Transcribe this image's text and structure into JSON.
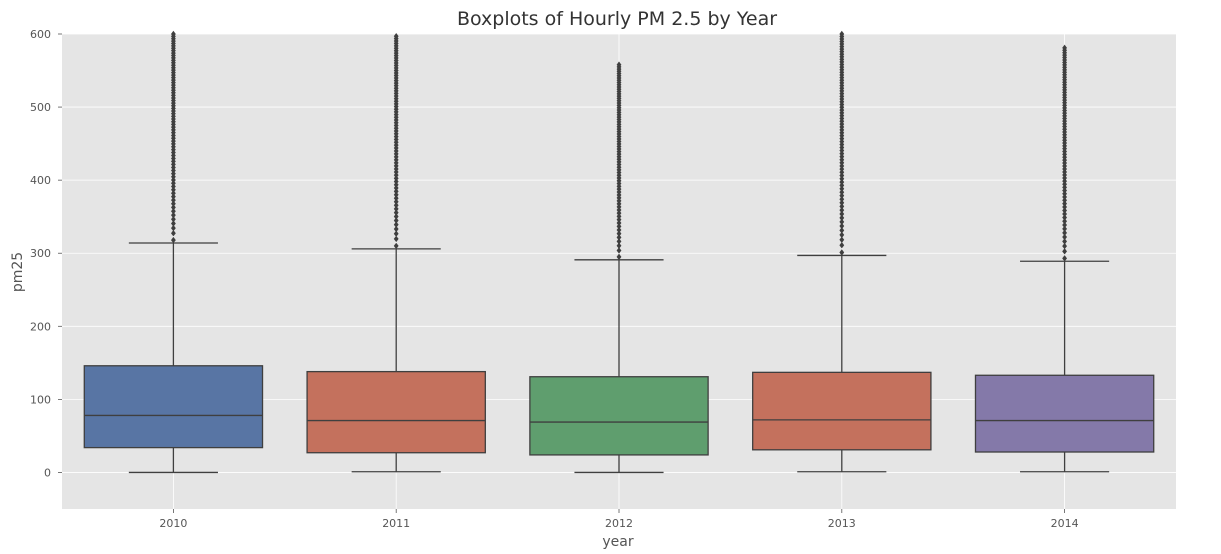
{
  "chart_data": {
    "type": "box",
    "title": "Boxplots of Hourly PM 2.5 by Year",
    "xlabel": "year",
    "ylabel": "pm25",
    "ylim": [
      -50,
      600
    ],
    "yticks": [
      0,
      100,
      200,
      300,
      400,
      500,
      600
    ],
    "grid": true,
    "categories": [
      "2010",
      "2011",
      "2012",
      "2013",
      "2014"
    ],
    "colors": [
      "#5875a4",
      "#c4715d",
      "#5f9e6e",
      "#c4715d",
      "#8479a9"
    ],
    "series": [
      {
        "category": "2010",
        "min": 0,
        "q1": 34,
        "median": 78,
        "q3": 146,
        "whisker_high": 314,
        "outlier_max": 600
      },
      {
        "category": "2011",
        "min": 1,
        "q1": 27,
        "median": 71,
        "q3": 138,
        "whisker_high": 306,
        "outlier_max": 597
      },
      {
        "category": "2012",
        "min": 0,
        "q1": 24,
        "median": 69,
        "q3": 131,
        "whisker_high": 291,
        "outlier_max": 558
      },
      {
        "category": "2013",
        "min": 1,
        "q1": 31,
        "median": 72,
        "q3": 137,
        "whisker_high": 297,
        "outlier_max": 600
      },
      {
        "category": "2014",
        "min": 1,
        "q1": 28,
        "median": 71,
        "q3": 133,
        "whisker_high": 289,
        "outlier_max": 581
      }
    ]
  }
}
